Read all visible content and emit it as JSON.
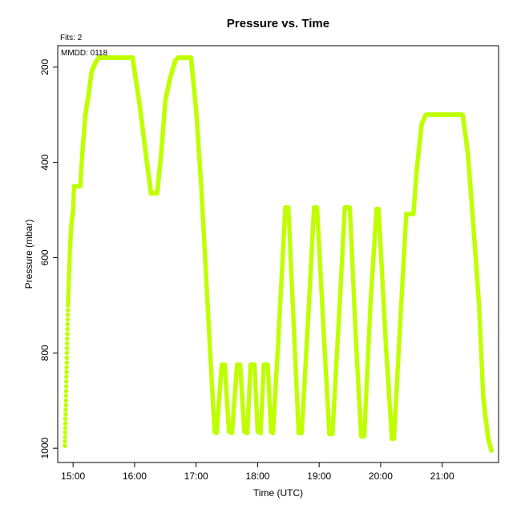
{
  "chart_data": {
    "type": "scatter",
    "title": "Pressure  vs. Time",
    "xlabel": "Time (UTC)",
    "ylabel": "Pressure (mbar)",
    "annotations": {
      "fits": "Fits: 2",
      "mmdd": "MMDD: 0118"
    },
    "x_ticks": [
      "15:00",
      "16:00",
      "17:00",
      "18:00",
      "19:00",
      "20:00",
      "21:00"
    ],
    "y_ticks": [
      200,
      400,
      600,
      800,
      1000
    ],
    "xlim": [
      "14:45",
      "21:55"
    ],
    "ylim_reversed": [
      1030,
      155
    ],
    "grid": false,
    "legend": "none",
    "marker_color": "#bfff00",
    "series": [
      {
        "points": [
          [
            "14:52",
            995
          ],
          [
            "14:53",
            900
          ],
          [
            "14:54",
            800
          ],
          [
            "14:55",
            700
          ],
          [
            "14:56",
            640
          ],
          [
            "14:57",
            580
          ],
          [
            "14:58",
            540
          ],
          [
            "15:00",
            500
          ],
          [
            "15:01",
            450
          ],
          [
            "15:07",
            450
          ],
          [
            "15:09",
            380
          ],
          [
            "15:12",
            300
          ],
          [
            "15:15",
            260
          ],
          [
            "15:18",
            210
          ],
          [
            "15:22",
            190
          ],
          [
            "15:25",
            180
          ],
          [
            "15:58",
            180
          ],
          [
            "16:05",
            280
          ],
          [
            "16:12",
            400
          ],
          [
            "16:16",
            465
          ],
          [
            "16:22",
            465
          ],
          [
            "16:26",
            380
          ],
          [
            "16:30",
            270
          ],
          [
            "16:35",
            220
          ],
          [
            "16:40",
            185
          ],
          [
            "16:43",
            180
          ],
          [
            "16:55",
            180
          ],
          [
            "17:00",
            290
          ],
          [
            "17:05",
            450
          ],
          [
            "17:10",
            650
          ],
          [
            "17:15",
            850
          ],
          [
            "17:18",
            965
          ],
          [
            "17:20",
            968
          ],
          [
            "17:25",
            825
          ],
          [
            "17:28",
            825
          ],
          [
            "17:32",
            965
          ],
          [
            "17:35",
            968
          ],
          [
            "17:40",
            825
          ],
          [
            "17:43",
            825
          ],
          [
            "17:47",
            965
          ],
          [
            "17:50",
            968
          ],
          [
            "17:53",
            825
          ],
          [
            "17:57",
            825
          ],
          [
            "18:00",
            965
          ],
          [
            "18:03",
            968
          ],
          [
            "18:06",
            825
          ],
          [
            "18:10",
            825
          ],
          [
            "18:13",
            965
          ],
          [
            "18:15",
            968
          ],
          [
            "18:20",
            780
          ],
          [
            "18:27",
            495
          ],
          [
            "18:30",
            495
          ],
          [
            "18:36",
            780
          ],
          [
            "18:40",
            968
          ],
          [
            "18:43",
            968
          ],
          [
            "18:50",
            700
          ],
          [
            "18:55",
            495
          ],
          [
            "18:58",
            495
          ],
          [
            "19:05",
            780
          ],
          [
            "19:10",
            970
          ],
          [
            "19:13",
            970
          ],
          [
            "19:20",
            700
          ],
          [
            "19:25",
            495
          ],
          [
            "19:30",
            495
          ],
          [
            "19:36",
            780
          ],
          [
            "19:41",
            975
          ],
          [
            "19:44",
            975
          ],
          [
            "19:50",
            700
          ],
          [
            "19:56",
            498
          ],
          [
            "19:58",
            498
          ],
          [
            "20:05",
            780
          ],
          [
            "20:11",
            980
          ],
          [
            "20:13",
            980
          ],
          [
            "20:20",
            700
          ],
          [
            "20:25",
            508
          ],
          [
            "20:32",
            508
          ],
          [
            "20:35",
            420
          ],
          [
            "20:40",
            320
          ],
          [
            "20:44",
            300
          ],
          [
            "21:20",
            300
          ],
          [
            "21:25",
            380
          ],
          [
            "21:30",
            520
          ],
          [
            "21:36",
            700
          ],
          [
            "21:40",
            890
          ],
          [
            "21:42",
            930
          ],
          [
            "21:45",
            980
          ],
          [
            "21:48",
            1005
          ]
        ]
      }
    ]
  }
}
